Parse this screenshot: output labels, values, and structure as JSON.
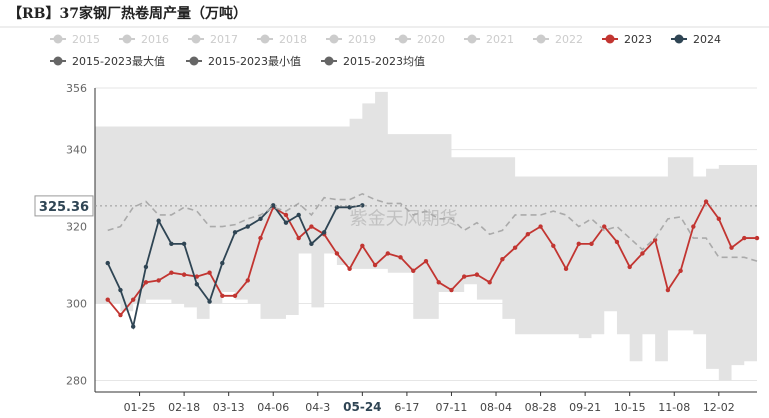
{
  "title": "【RB】37家钢厂热卷周产量（万吨）",
  "watermark": "紫金天风期货",
  "crosshair_y_label": "325.36",
  "crosshair_x_label": "05-24",
  "legend": {
    "row1": [
      {
        "name": "2015",
        "color": "#cccccc",
        "icon": "circle-line"
      },
      {
        "name": "2016",
        "color": "#cccccc",
        "icon": "circle-line"
      },
      {
        "name": "2017",
        "color": "#cccccc",
        "icon": "circle-line"
      },
      {
        "name": "2018",
        "color": "#cccccc",
        "icon": "circle-line"
      },
      {
        "name": "2019",
        "color": "#cccccc",
        "icon": "circle-line"
      },
      {
        "name": "2020",
        "color": "#cccccc",
        "icon": "circle-line"
      },
      {
        "name": "2021",
        "color": "#cccccc",
        "icon": "circle-line"
      },
      {
        "name": "2022",
        "color": "#cccccc",
        "icon": "circle-line"
      },
      {
        "name": "2023",
        "color": "#c23531",
        "icon": "circle-line"
      },
      {
        "name": "2024",
        "color": "#2f4554",
        "icon": "circle-line"
      }
    ],
    "row2": [
      {
        "name": "2015-2023最大值",
        "color": "#666666",
        "icon": "circle-line"
      },
      {
        "name": "2015-2023最小值",
        "color": "#666666",
        "icon": "circle-line"
      },
      {
        "name": "2015-2023均值",
        "color": "#666666",
        "icon": "circle-line"
      }
    ]
  },
  "chart_data": {
    "type": "line",
    "x_tick_labels": [
      "01-25",
      "02-18",
      "03-13",
      "04-06",
      "04-3",
      "05-24",
      "6-17",
      "07-11",
      "08-04",
      "08-28",
      "09-21",
      "10-15",
      "11-08",
      "12-02"
    ],
    "x_tick_positions": [
      3.5,
      7,
      10.5,
      14,
      17.5,
      21,
      24.5,
      28,
      31.5,
      35,
      38.5,
      42,
      45.5,
      49
    ],
    "xlim": [
      0,
      52
    ],
    "ylim": [
      277,
      356
    ],
    "y_ticks": [
      280,
      300,
      320,
      340,
      356
    ],
    "grid": true,
    "legend_position": "top",
    "band_max": [
      346,
      346,
      346,
      346,
      346,
      346,
      346,
      346,
      346,
      346,
      346,
      346,
      346,
      346,
      346,
      346,
      346,
      346,
      346,
      346,
      348,
      352,
      355,
      344,
      344,
      344,
      344,
      344,
      338,
      338,
      338,
      338,
      338,
      333,
      333,
      333,
      333,
      333,
      333,
      333,
      333,
      333,
      333,
      333,
      333,
      338,
      338,
      333,
      335,
      336,
      336,
      336,
      336,
      337
    ],
    "band_min": [
      300,
      300,
      298,
      300,
      301,
      301,
      300,
      299,
      296,
      300,
      303,
      301,
      300,
      296,
      296,
      297,
      313,
      299,
      313,
      310,
      309,
      309,
      309,
      308,
      308,
      296,
      296,
      303,
      303,
      305,
      301,
      301,
      296,
      292,
      292,
      292,
      292,
      292,
      291,
      292,
      298,
      292,
      285,
      292,
      285,
      293,
      293,
      292,
      283,
      280,
      284,
      285,
      292,
      289
    ],
    "series": [
      {
        "name": "2023",
        "color": "#c23531",
        "x": [
          1,
          2,
          3,
          4,
          5,
          6,
          7,
          8,
          9,
          10,
          11,
          12,
          13,
          14,
          15,
          16,
          17,
          18,
          19,
          20,
          21,
          22,
          23,
          24,
          25,
          26,
          27,
          28,
          29,
          30,
          31,
          32,
          33,
          34,
          35,
          36,
          37,
          38,
          39,
          40,
          41,
          42,
          43,
          44,
          45,
          46,
          47,
          48,
          49,
          50,
          51,
          52
        ],
        "values": [
          301,
          297,
          301,
          305.5,
          306,
          308,
          307.5,
          307,
          308,
          302,
          302,
          306,
          317,
          325,
          323,
          317,
          320,
          318,
          313,
          309,
          315,
          310,
          313,
          312,
          308.5,
          311,
          305.5,
          303.5,
          307,
          307.5,
          305.5,
          311.5,
          314.5,
          318,
          320,
          315,
          309,
          315.5,
          315.5,
          320,
          316,
          309.5,
          313,
          316.5,
          303.5,
          308.5,
          320,
          326.5,
          322,
          314.5,
          317,
          317
        ]
      },
      {
        "name": "2024",
        "color": "#2f4554",
        "x": [
          1,
          2,
          3,
          4,
          5,
          6,
          7,
          8,
          9,
          10,
          11,
          12,
          13,
          14,
          15,
          16,
          17,
          18,
          19,
          20,
          21
        ],
        "values": [
          310.5,
          303.5,
          294,
          309.5,
          321.5,
          315.5,
          315.5,
          305,
          300.5,
          310.5,
          318.5,
          320,
          322,
          325.5,
          321,
          323,
          315.5,
          318.5,
          325,
          325,
          325.5
        ]
      },
      {
        "name": "2015-2023均值",
        "color": "#aaaaaa",
        "dashed": true,
        "x": [
          1,
          2,
          3,
          4,
          5,
          6,
          7,
          8,
          9,
          10,
          11,
          12,
          13,
          14,
          15,
          16,
          17,
          18,
          19,
          20,
          21,
          22,
          23,
          24,
          25,
          26,
          27,
          28,
          29,
          30,
          31,
          32,
          33,
          34,
          35,
          36,
          37,
          38,
          39,
          40,
          41,
          42,
          43,
          44,
          45,
          46,
          47,
          48,
          49,
          50,
          51,
          52
        ],
        "values": [
          319,
          320,
          325,
          326.5,
          323,
          323,
          325,
          324,
          320,
          320,
          320.5,
          322,
          323,
          325,
          324,
          326,
          323,
          327.5,
          327,
          327,
          328.5,
          327,
          326,
          326,
          323,
          324,
          322,
          322,
          319,
          321,
          318,
          319,
          323,
          323,
          323,
          324,
          323,
          320,
          322,
          319,
          320,
          317,
          314,
          317,
          322,
          322.5,
          317,
          317,
          312,
          312,
          312,
          311
        ]
      }
    ]
  }
}
